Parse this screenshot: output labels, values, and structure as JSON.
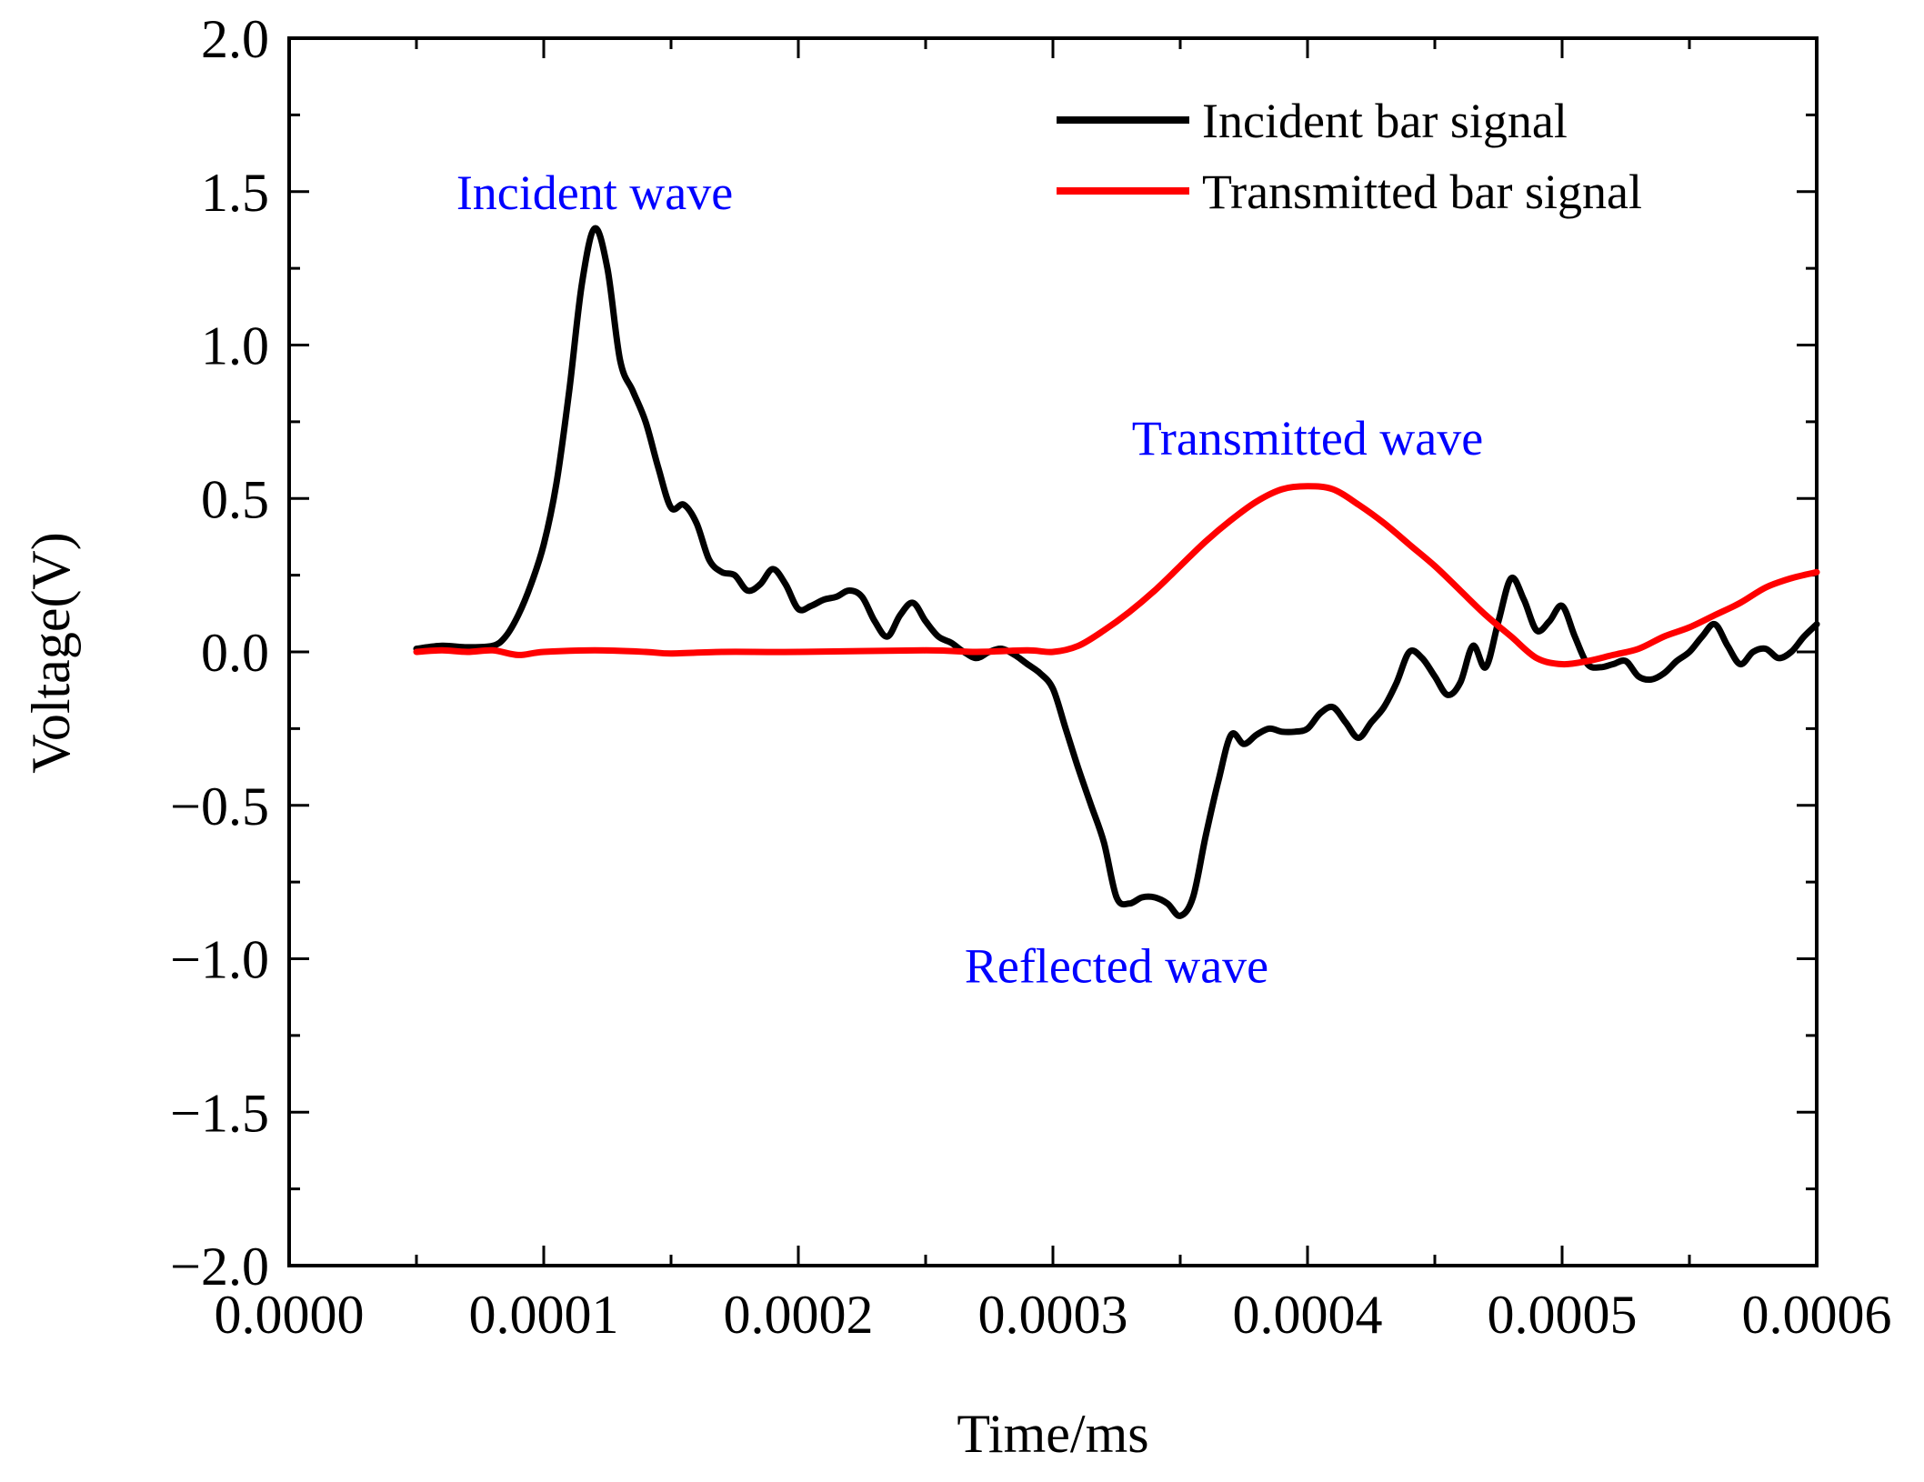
{
  "chart_data": {
    "type": "line",
    "title": "",
    "xlabel": "Time/ms",
    "ylabel": "Voltage(V)",
    "xlim": [
      0.0,
      0.0006
    ],
    "ylim": [
      -2.0,
      2.0
    ],
    "x_ticks": [
      0.0,
      0.0001,
      0.0002,
      0.0003,
      0.0004,
      0.0005,
      0.0006
    ],
    "x_tick_labels": [
      "0.0000",
      "0.0001",
      "0.0002",
      "0.0003",
      "0.0004",
      "0.0005",
      "0.0006"
    ],
    "y_ticks": [
      -2.0,
      -1.5,
      -1.0,
      -0.5,
      0.0,
      0.5,
      1.0,
      1.5,
      2.0
    ],
    "y_tick_labels": [
      "−2.0",
      "−1.5",
      "−1.0",
      "−0.5",
      "0.0",
      "0.5",
      "1.0",
      "1.5",
      "2.0"
    ],
    "legend_position": "top-right",
    "series": [
      {
        "name": "Incident bar signal",
        "color": "#000000",
        "points": [
          [
            5e-05,
            0.01
          ],
          [
            6e-05,
            0.02
          ],
          [
            7e-05,
            0.015
          ],
          [
            8e-05,
            0.02
          ],
          [
            8.5e-05,
            0.05
          ],
          [
            9e-05,
            0.12
          ],
          [
            9.5e-05,
            0.22
          ],
          [
            0.0001,
            0.35
          ],
          [
            0.000105,
            0.55
          ],
          [
            0.00011,
            0.85
          ],
          [
            0.000115,
            1.2
          ],
          [
            0.00012,
            1.38
          ],
          [
            0.000125,
            1.25
          ],
          [
            0.00013,
            0.95
          ],
          [
            0.000135,
            0.85
          ],
          [
            0.00014,
            0.75
          ],
          [
            0.000145,
            0.6
          ],
          [
            0.00015,
            0.47
          ],
          [
            0.000155,
            0.48
          ],
          [
            0.00016,
            0.42
          ],
          [
            0.000165,
            0.3
          ],
          [
            0.00017,
            0.26
          ],
          [
            0.000175,
            0.25
          ],
          [
            0.00018,
            0.2
          ],
          [
            0.000185,
            0.22
          ],
          [
            0.00019,
            0.27
          ],
          [
            0.000195,
            0.22
          ],
          [
            0.0002,
            0.14
          ],
          [
            0.000205,
            0.15
          ],
          [
            0.00021,
            0.17
          ],
          [
            0.000215,
            0.18
          ],
          [
            0.00022,
            0.2
          ],
          [
            0.000225,
            0.18
          ],
          [
            0.00023,
            0.1
          ],
          [
            0.000235,
            0.05
          ],
          [
            0.00024,
            0.12
          ],
          [
            0.000245,
            0.16
          ],
          [
            0.00025,
            0.1
          ],
          [
            0.000255,
            0.05
          ],
          [
            0.00026,
            0.03
          ],
          [
            0.000265,
            0.0
          ],
          [
            0.00027,
            -0.02
          ],
          [
            0.000275,
            0.0
          ],
          [
            0.00028,
            0.01
          ],
          [
            0.000285,
            -0.01
          ],
          [
            0.00029,
            -0.04
          ],
          [
            0.000295,
            -0.07
          ],
          [
            0.0003,
            -0.12
          ],
          [
            0.000305,
            -0.25
          ],
          [
            0.00031,
            -0.38
          ],
          [
            0.000315,
            -0.5
          ],
          [
            0.00032,
            -0.62
          ],
          [
            0.000325,
            -0.8
          ],
          [
            0.00033,
            -0.82
          ],
          [
            0.000335,
            -0.8
          ],
          [
            0.00034,
            -0.8
          ],
          [
            0.000345,
            -0.82
          ],
          [
            0.00035,
            -0.86
          ],
          [
            0.000355,
            -0.8
          ],
          [
            0.00036,
            -0.6
          ],
          [
            0.000365,
            -0.42
          ],
          [
            0.00037,
            -0.27
          ],
          [
            0.000375,
            -0.3
          ],
          [
            0.00038,
            -0.27
          ],
          [
            0.000385,
            -0.25
          ],
          [
            0.00039,
            -0.26
          ],
          [
            0.000395,
            -0.26
          ],
          [
            0.0004,
            -0.25
          ],
          [
            0.000405,
            -0.2
          ],
          [
            0.00041,
            -0.18
          ],
          [
            0.000415,
            -0.23
          ],
          [
            0.00042,
            -0.28
          ],
          [
            0.000425,
            -0.23
          ],
          [
            0.00043,
            -0.18
          ],
          [
            0.000435,
            -0.1
          ],
          [
            0.00044,
            0.0
          ],
          [
            0.000445,
            -0.02
          ],
          [
            0.00045,
            -0.08
          ],
          [
            0.000455,
            -0.14
          ],
          [
            0.00046,
            -0.1
          ],
          [
            0.000465,
            0.02
          ],
          [
            0.00047,
            -0.05
          ],
          [
            0.000475,
            0.1
          ],
          [
            0.00048,
            0.24
          ],
          [
            0.000485,
            0.17
          ],
          [
            0.00049,
            0.07
          ],
          [
            0.000495,
            0.1
          ],
          [
            0.0005,
            0.15
          ],
          [
            0.000505,
            0.05
          ],
          [
            0.00051,
            -0.04
          ],
          [
            0.000515,
            -0.05
          ],
          [
            0.00052,
            -0.04
          ],
          [
            0.000525,
            -0.03
          ],
          [
            0.00053,
            -0.08
          ],
          [
            0.000535,
            -0.09
          ],
          [
            0.00054,
            -0.07
          ],
          [
            0.000545,
            -0.03
          ],
          [
            0.00055,
            0.0
          ],
          [
            0.000555,
            0.05
          ],
          [
            0.00056,
            0.09
          ],
          [
            0.000565,
            0.02
          ],
          [
            0.00057,
            -0.04
          ],
          [
            0.000575,
            0.0
          ],
          [
            0.00058,
            0.01
          ],
          [
            0.000585,
            -0.02
          ],
          [
            0.00059,
            0.0
          ],
          [
            0.000595,
            0.05
          ],
          [
            0.0006,
            0.09
          ]
        ]
      },
      {
        "name": "Transmitted bar signal",
        "color": "#ff0000",
        "points": [
          [
            5e-05,
            0.0
          ],
          [
            6e-05,
            0.005
          ],
          [
            7e-05,
            0.0
          ],
          [
            8e-05,
            0.005
          ],
          [
            9e-05,
            -0.01
          ],
          [
            0.0001,
            0.0
          ],
          [
            0.00012,
            0.005
          ],
          [
            0.00014,
            0.0
          ],
          [
            0.00015,
            -0.005
          ],
          [
            0.00017,
            0.0
          ],
          [
            0.0002,
            0.0
          ],
          [
            0.00025,
            0.005
          ],
          [
            0.00027,
            0.0
          ],
          [
            0.00029,
            0.005
          ],
          [
            0.0003,
            0.0
          ],
          [
            0.00031,
            0.02
          ],
          [
            0.00032,
            0.07
          ],
          [
            0.00033,
            0.13
          ],
          [
            0.00034,
            0.2
          ],
          [
            0.00035,
            0.28
          ],
          [
            0.00036,
            0.36
          ],
          [
            0.00037,
            0.43
          ],
          [
            0.00038,
            0.49
          ],
          [
            0.00039,
            0.53
          ],
          [
            0.0004,
            0.54
          ],
          [
            0.00041,
            0.53
          ],
          [
            0.00042,
            0.48
          ],
          [
            0.00043,
            0.42
          ],
          [
            0.00044,
            0.35
          ],
          [
            0.00045,
            0.28
          ],
          [
            0.00046,
            0.2
          ],
          [
            0.00047,
            0.12
          ],
          [
            0.00048,
            0.05
          ],
          [
            0.00049,
            -0.02
          ],
          [
            0.0005,
            -0.04
          ],
          [
            0.00051,
            -0.03
          ],
          [
            0.00052,
            -0.01
          ],
          [
            0.00053,
            0.01
          ],
          [
            0.00054,
            0.05
          ],
          [
            0.00055,
            0.08
          ],
          [
            0.00056,
            0.12
          ],
          [
            0.00057,
            0.16
          ],
          [
            0.00058,
            0.21
          ],
          [
            0.00059,
            0.24
          ],
          [
            0.0006,
            0.26
          ]
        ]
      }
    ],
    "annotations": [
      {
        "text": "Incident wave",
        "x": 0.00012,
        "y": 1.5,
        "color": "#0000ff"
      },
      {
        "text": "Transmitted wave",
        "x": 0.0004,
        "y": 0.7,
        "color": "#0000ff"
      },
      {
        "text": "Reflected wave",
        "x": 0.000325,
        "y": -1.02,
        "color": "#0000ff"
      }
    ]
  }
}
